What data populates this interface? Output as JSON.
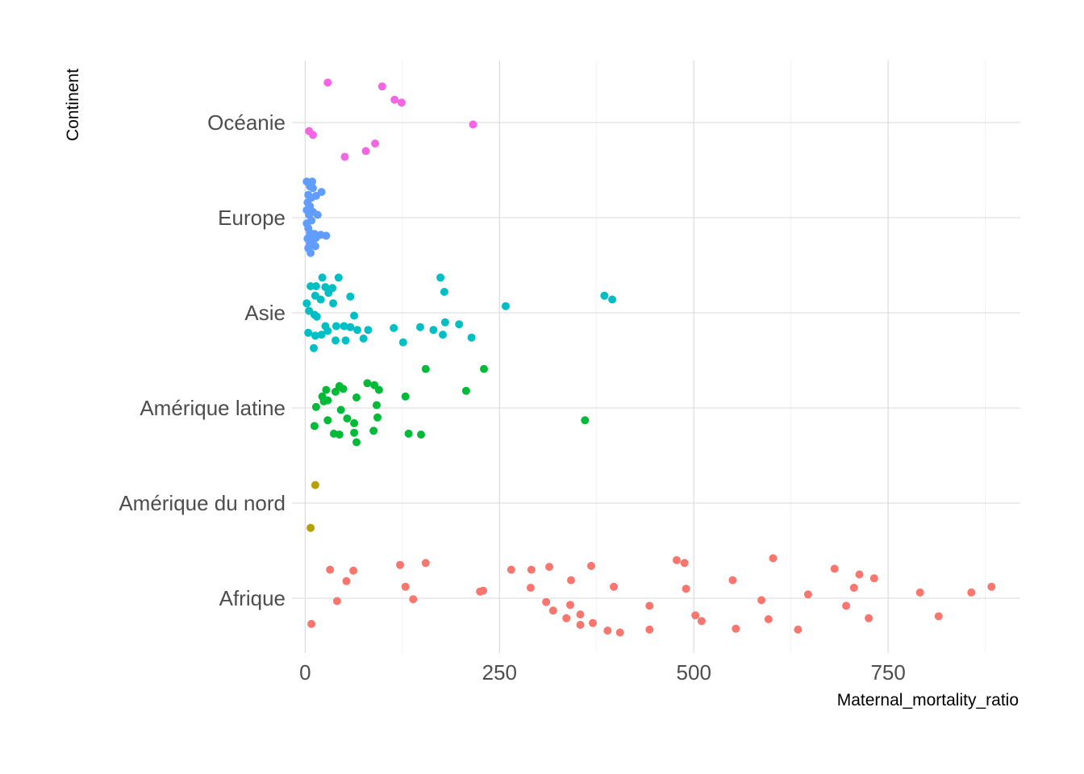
{
  "chart_data": {
    "type": "scatter",
    "variant": "jitter strip plot",
    "xlabel": "Maternal_mortality_ratio",
    "ylabel": "Continent",
    "xlim": [
      -17,
      920
    ],
    "x_ticks": [
      0,
      250,
      500,
      750
    ],
    "x_minor_ticks": [
      125,
      375,
      625,
      875
    ],
    "categories": [
      "Afrique",
      "Amérique du nord",
      "Amérique latine",
      "Asie",
      "Europe",
      "Océanie"
    ],
    "grid": true,
    "legend": "none",
    "series": [
      {
        "category": "Afrique",
        "color": "#F8766D",
        "points": [
          {
            "x": 32,
            "j": 0.3
          },
          {
            "x": 62,
            "j": 0.29
          },
          {
            "x": 122,
            "j": 0.35
          },
          {
            "x": 155,
            "j": 0.37
          },
          {
            "x": 53,
            "j": 0.18
          },
          {
            "x": 129,
            "j": 0.12
          },
          {
            "x": 41,
            "j": -0.03
          },
          {
            "x": 139,
            "j": -0.01
          },
          {
            "x": 8,
            "j": -0.27
          },
          {
            "x": 225,
            "j": 0.07
          },
          {
            "x": 229,
            "j": 0.08
          },
          {
            "x": 265,
            "j": 0.3
          },
          {
            "x": 291,
            "j": 0.3
          },
          {
            "x": 314,
            "j": 0.33
          },
          {
            "x": 342,
            "j": 0.19
          },
          {
            "x": 368,
            "j": 0.34
          },
          {
            "x": 290,
            "j": 0.11
          },
          {
            "x": 310,
            "j": -0.04
          },
          {
            "x": 319,
            "j": -0.13
          },
          {
            "x": 341,
            "j": -0.07
          },
          {
            "x": 336,
            "j": -0.21
          },
          {
            "x": 354,
            "j": -0.17
          },
          {
            "x": 354,
            "j": -0.28
          },
          {
            "x": 370,
            "j": -0.26
          },
          {
            "x": 397,
            "j": 0.12
          },
          {
            "x": 389,
            "j": -0.34
          },
          {
            "x": 405,
            "j": -0.36
          },
          {
            "x": 443,
            "j": -0.08
          },
          {
            "x": 443,
            "j": -0.33
          },
          {
            "x": 478,
            "j": 0.4
          },
          {
            "x": 488,
            "j": 0.37
          },
          {
            "x": 490,
            "j": 0.1
          },
          {
            "x": 502,
            "j": -0.18
          },
          {
            "x": 510,
            "j": -0.24
          },
          {
            "x": 550,
            "j": 0.19
          },
          {
            "x": 554,
            "j": -0.32
          },
          {
            "x": 587,
            "j": -0.02
          },
          {
            "x": 596,
            "j": -0.22
          },
          {
            "x": 602,
            "j": 0.42
          },
          {
            "x": 634,
            "j": -0.33
          },
          {
            "x": 647,
            "j": 0.04
          },
          {
            "x": 681,
            "j": 0.31
          },
          {
            "x": 696,
            "j": -0.08
          },
          {
            "x": 706,
            "j": 0.11
          },
          {
            "x": 713,
            "j": 0.25
          },
          {
            "x": 725,
            "j": -0.21
          },
          {
            "x": 732,
            "j": 0.21
          },
          {
            "x": 791,
            "j": 0.06
          },
          {
            "x": 815,
            "j": -0.19
          },
          {
            "x": 857,
            "j": 0.06
          },
          {
            "x": 883,
            "j": 0.12
          }
        ]
      },
      {
        "category": "Amérique du nord",
        "color": "#B79F00",
        "points": [
          {
            "x": 13,
            "j": 0.19
          },
          {
            "x": 7,
            "j": -0.26
          }
        ]
      },
      {
        "category": "Amérique latine",
        "color": "#00BA38",
        "points": [
          {
            "x": 155,
            "j": 0.41
          },
          {
            "x": 230,
            "j": 0.41
          },
          {
            "x": 80,
            "j": 0.26
          },
          {
            "x": 89,
            "j": 0.24
          },
          {
            "x": 95,
            "j": 0.19
          },
          {
            "x": 44,
            "j": 0.23
          },
          {
            "x": 49,
            "j": 0.2
          },
          {
            "x": 27,
            "j": 0.19
          },
          {
            "x": 39,
            "j": 0.17
          },
          {
            "x": 66,
            "j": 0.11
          },
          {
            "x": 22,
            "j": 0.12
          },
          {
            "x": 29,
            "j": 0.08
          },
          {
            "x": 24,
            "j": 0.07
          },
          {
            "x": 207,
            "j": 0.18
          },
          {
            "x": 129,
            "j": 0.12
          },
          {
            "x": 92,
            "j": 0.03
          },
          {
            "x": 14,
            "j": 0.01
          },
          {
            "x": 46,
            "j": -0.02
          },
          {
            "x": 29,
            "j": -0.13
          },
          {
            "x": 54,
            "j": -0.11
          },
          {
            "x": 63,
            "j": -0.16
          },
          {
            "x": 93,
            "j": -0.1
          },
          {
            "x": 12,
            "j": -0.19
          },
          {
            "x": 37,
            "j": -0.27
          },
          {
            "x": 44,
            "j": -0.28
          },
          {
            "x": 63,
            "j": -0.26
          },
          {
            "x": 66,
            "j": -0.36
          },
          {
            "x": 88,
            "j": -0.24
          },
          {
            "x": 133,
            "j": -0.27
          },
          {
            "x": 149,
            "j": -0.28
          },
          {
            "x": 360,
            "j": -0.13
          }
        ]
      },
      {
        "category": "Asie",
        "color": "#00BFC4",
        "points": [
          {
            "x": 22,
            "j": 0.37
          },
          {
            "x": 43,
            "j": 0.37
          },
          {
            "x": 174,
            "j": 0.37
          },
          {
            "x": 179,
            "j": 0.22
          },
          {
            "x": 7,
            "j": 0.28
          },
          {
            "x": 14,
            "j": 0.28
          },
          {
            "x": 26,
            "j": 0.27
          },
          {
            "x": 35,
            "j": 0.26
          },
          {
            "x": 30,
            "j": 0.21
          },
          {
            "x": 13,
            "j": 0.18
          },
          {
            "x": 20,
            "j": 0.14
          },
          {
            "x": 58,
            "j": 0.17
          },
          {
            "x": 2,
            "j": 0.1
          },
          {
            "x": 36,
            "j": 0.1
          },
          {
            "x": 258,
            "j": 0.07
          },
          {
            "x": 385,
            "j": 0.18
          },
          {
            "x": 395,
            "j": 0.14
          },
          {
            "x": 5,
            "j": 0.02
          },
          {
            "x": 12,
            "j": -0.02
          },
          {
            "x": 63,
            "j": -0.03
          },
          {
            "x": 15,
            "j": -0.04
          },
          {
            "x": 180,
            "j": -0.1
          },
          {
            "x": 198,
            "j": -0.12
          },
          {
            "x": 114,
            "j": -0.16
          },
          {
            "x": 148,
            "j": -0.15
          },
          {
            "x": 165,
            "j": -0.18
          },
          {
            "x": 177,
            "j": -0.23
          },
          {
            "x": 214,
            "j": -0.26
          },
          {
            "x": 26,
            "j": -0.14
          },
          {
            "x": 29,
            "j": -0.19
          },
          {
            "x": 40,
            "j": -0.14
          },
          {
            "x": 50,
            "j": -0.14
          },
          {
            "x": 58,
            "j": -0.15
          },
          {
            "x": 67,
            "j": -0.18
          },
          {
            "x": 81,
            "j": -0.18
          },
          {
            "x": 4,
            "j": -0.21
          },
          {
            "x": 13,
            "j": -0.24
          },
          {
            "x": 21,
            "j": -0.23
          },
          {
            "x": 39,
            "j": -0.29
          },
          {
            "x": 52,
            "j": -0.29
          },
          {
            "x": 75,
            "j": -0.27
          },
          {
            "x": 126,
            "j": -0.31
          },
          {
            "x": 11,
            "j": -0.37
          }
        ]
      },
      {
        "category": "Europe",
        "color": "#619CFF",
        "points": [
          {
            "x": 2,
            "j": 0.38
          },
          {
            "x": 4,
            "j": 0.37
          },
          {
            "x": 9,
            "j": 0.38
          },
          {
            "x": 6,
            "j": 0.33
          },
          {
            "x": 10,
            "j": 0.31
          },
          {
            "x": 21,
            "j": 0.27
          },
          {
            "x": 14,
            "j": 0.23
          },
          {
            "x": 4,
            "j": 0.24
          },
          {
            "x": 8,
            "j": 0.21
          },
          {
            "x": 3,
            "j": 0.16
          },
          {
            "x": 6,
            "j": 0.12
          },
          {
            "x": 2,
            "j": 0.08
          },
          {
            "x": 10,
            "j": 0.06
          },
          {
            "x": 5,
            "j": 0.03
          },
          {
            "x": 16,
            "j": 0.03
          },
          {
            "x": 8,
            "j": -0.03
          },
          {
            "x": 2,
            "j": -0.06
          },
          {
            "x": 4,
            "j": -0.11
          },
          {
            "x": 6,
            "j": -0.16
          },
          {
            "x": 12,
            "j": -0.17
          },
          {
            "x": 20,
            "j": -0.18
          },
          {
            "x": 27,
            "j": -0.19
          },
          {
            "x": 14,
            "j": -0.21
          },
          {
            "x": 8,
            "j": -0.22
          },
          {
            "x": 3,
            "j": -0.22
          },
          {
            "x": 10,
            "j": -0.25
          },
          {
            "x": 6,
            "j": -0.27
          },
          {
            "x": 4,
            "j": -0.32
          },
          {
            "x": 13,
            "j": -0.3
          },
          {
            "x": 7,
            "j": -0.37
          }
        ]
      },
      {
        "category": "Océanie",
        "color": "#F564E3",
        "points": [
          {
            "x": 29,
            "j": 0.42
          },
          {
            "x": 99,
            "j": 0.38
          },
          {
            "x": 115,
            "j": 0.24
          },
          {
            "x": 124,
            "j": 0.21
          },
          {
            "x": 216,
            "j": -0.02
          },
          {
            "x": 5,
            "j": -0.09
          },
          {
            "x": 10,
            "j": -0.13
          },
          {
            "x": 90,
            "j": -0.22
          },
          {
            "x": 78,
            "j": -0.3
          },
          {
            "x": 51,
            "j": -0.36
          }
        ]
      }
    ]
  }
}
